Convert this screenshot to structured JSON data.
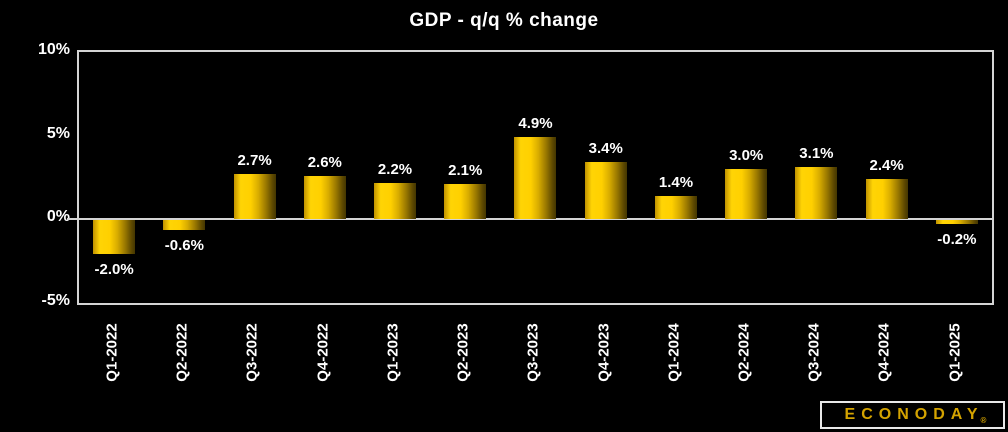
{
  "title": "GDP - q/q % change",
  "chart_data": {
    "type": "bar",
    "title": "GDP - q/q % change",
    "categories": [
      "Q1-2022",
      "Q2-2022",
      "Q3-2022",
      "Q4-2022",
      "Q1-2023",
      "Q2-2023",
      "Q3-2023",
      "Q4-2023",
      "Q1-2024",
      "Q2-2024",
      "Q3-2024",
      "Q4-2024",
      "Q1-2025"
    ],
    "values": [
      -2.0,
      -0.6,
      2.7,
      2.6,
      2.2,
      2.1,
      4.9,
      3.4,
      1.4,
      3.0,
      3.1,
      2.4,
      -0.2
    ],
    "value_labels": [
      "-2.0%",
      "-0.6%",
      "2.7%",
      "2.6%",
      "2.2%",
      "2.1%",
      "4.9%",
      "3.4%",
      "1.4%",
      "3.0%",
      "3.1%",
      "2.4%",
      "-0.2%"
    ],
    "xlabel": "",
    "ylabel": "",
    "ylim": [
      -5,
      10
    ],
    "ytick_values": [
      10,
      5,
      0,
      -5
    ],
    "ytick_labels": [
      "10%",
      "5%",
      "0%",
      "-5%"
    ],
    "grid": false,
    "legend": "none",
    "bar_color": "#ffd000",
    "bar_gradient": [
      "#c09200",
      "#ffd405",
      "#ffd000",
      "#937300",
      "#443600"
    ],
    "axis_color": "#d4d4d4",
    "label_color": "#ffffff",
    "background_color": "#000000"
  },
  "branding": {
    "logo_text": "ECONODAY",
    "registered_mark": "®",
    "logo_text_color": "#d4a300",
    "logo_border_color": "#e8e8e8"
  }
}
